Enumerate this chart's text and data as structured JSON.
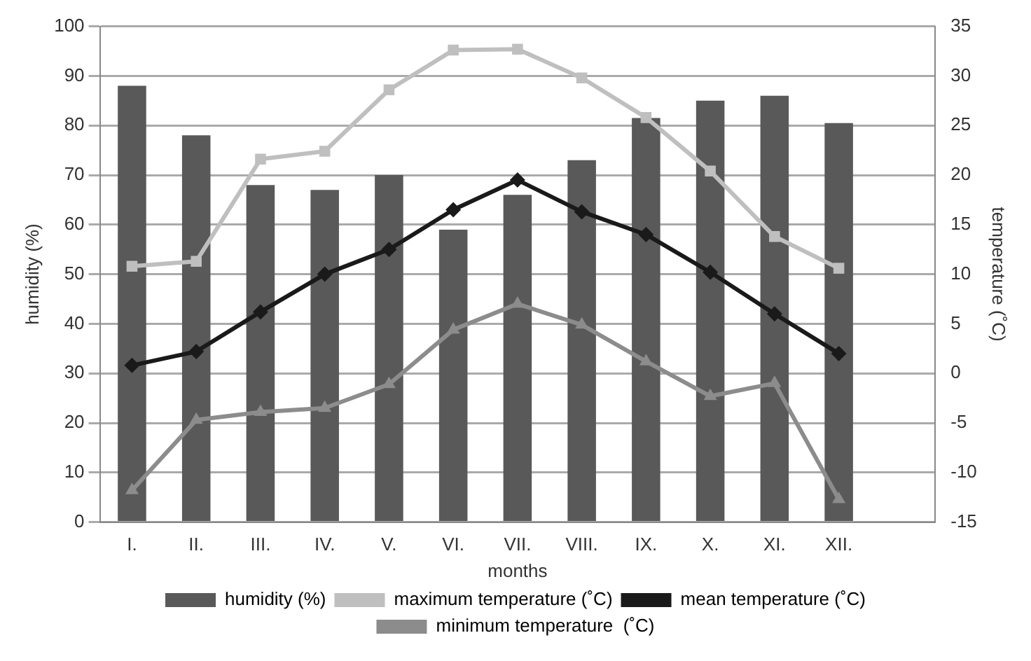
{
  "chart_data": {
    "type": "bar",
    "xlabel": "months",
    "ylabel": "humidity (%)",
    "y2label": "temperature (˚C)",
    "categories": [
      "I.",
      "II.",
      "III.",
      "IV.",
      "V.",
      "VI.",
      "VII.",
      "VIII.",
      "IX.",
      "X.",
      "XI.",
      "XII.",
      null
    ],
    "series": [
      {
        "name": "humidity (%)",
        "color": "#595959",
        "values": [
          88,
          78,
          68,
          67,
          70,
          59,
          66,
          73,
          81.5,
          85,
          86,
          80.5,
          null
        ]
      },
      {
        "name": "maximum temperature (˚C)",
        "type": "line",
        "axis": "y2",
        "marker": "square",
        "color": "#bfbfbf",
        "values": [
          10.8,
          11.3,
          21.6,
          22.4,
          28.6,
          32.6,
          32.7,
          29.8,
          25.8,
          20.4,
          13.8,
          10.6,
          null
        ]
      },
      {
        "name": "mean temperature (˚C)",
        "type": "line",
        "axis": "y2",
        "marker": "diamond",
        "color": "#1a1a1a",
        "values": [
          0.8,
          2.2,
          6.2,
          10,
          12.5,
          16.5,
          19.5,
          16.3,
          14,
          10.2,
          6,
          2,
          null
        ]
      },
      {
        "name": "minimum temperature  (˚C)",
        "type": "line",
        "axis": "y2",
        "marker": "triangle",
        "color": "#8c8c8c",
        "values": [
          -11.8,
          -4.7,
          -3.9,
          -3.5,
          -1.1,
          4.4,
          7,
          4.9,
          1.2,
          -2.3,
          -1,
          -12.7,
          null
        ]
      }
    ],
    "ylim": [
      0,
      100
    ],
    "yticks": [
      0,
      10,
      20,
      30,
      40,
      50,
      60,
      70,
      80,
      90,
      100
    ],
    "y2lim": [
      -15,
      35
    ],
    "y2ticks": [
      -15,
      -10,
      -5,
      0,
      5,
      10,
      15,
      20,
      25,
      30,
      35
    ],
    "grid": "y",
    "legend": "bottom"
  }
}
